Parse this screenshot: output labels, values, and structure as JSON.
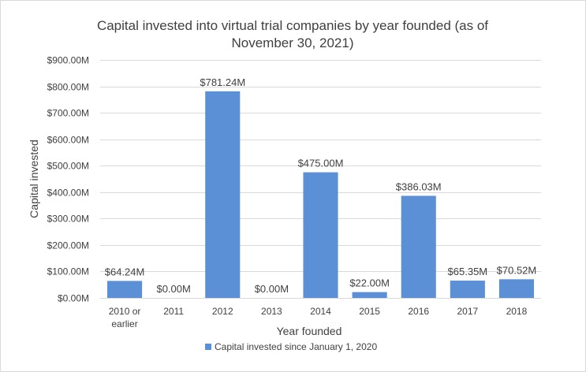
{
  "chart_data": {
    "type": "bar",
    "title_lines": [
      "Capital invested into virtual trial companies by year founded (as of",
      "November 30, 2021)"
    ],
    "xlabel": "Year founded",
    "ylabel": "Capital invested",
    "categories": [
      [
        "2010 or",
        "earlier"
      ],
      [
        "2011"
      ],
      [
        "2012"
      ],
      [
        "2013"
      ],
      [
        "2014"
      ],
      [
        "2015"
      ],
      [
        "2016"
      ],
      [
        "2017"
      ],
      [
        "2018"
      ]
    ],
    "series": [
      {
        "name": "Capital invested since January 1, 2020",
        "color": "#5b8fd6",
        "values": [
          64.24,
          0.0,
          781.24,
          0.0,
          475.0,
          22.0,
          386.03,
          65.35,
          70.52
        ],
        "data_labels": [
          "$64.24M",
          "$0.00M",
          "$781.24M",
          "$0.00M",
          "$475.00M",
          "$22.00M",
          "$386.03M",
          "$65.35M",
          "$70.52M"
        ]
      }
    ],
    "ylim": [
      0,
      900
    ],
    "yticks": [
      0,
      100,
      200,
      300,
      400,
      500,
      600,
      700,
      800,
      900
    ],
    "ytick_labels": [
      "$0.00M",
      "$100.00M",
      "$200.00M",
      "$300.00M",
      "$400.00M",
      "$500.00M",
      "$600.00M",
      "$700.00M",
      "$800.00M",
      "$900.00M"
    ],
    "grid": true,
    "legend_position": "bottom"
  }
}
